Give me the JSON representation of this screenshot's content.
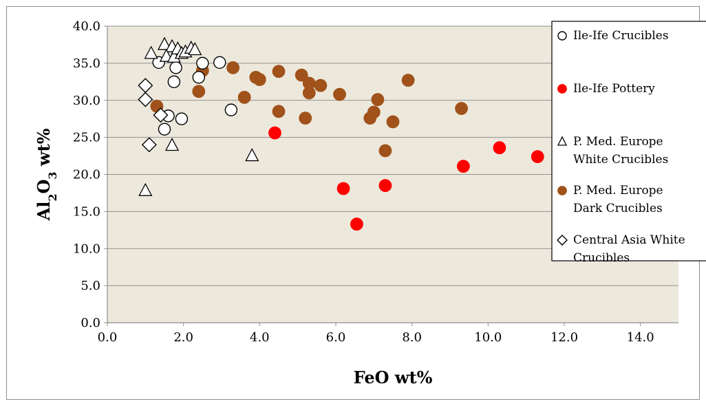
{
  "chart_data": {
    "type": "scatter",
    "title": "",
    "xlabel": "FeO wt%",
    "ylabel_parts": [
      "Al",
      "2",
      "O",
      "3",
      " wt%"
    ],
    "xlim": [
      0,
      15
    ],
    "ylim": [
      0,
      40
    ],
    "x_ticks": [
      "0.0",
      "2.0",
      "4.0",
      "6.0",
      "8.0",
      "10.0",
      "12.0",
      "14.0"
    ],
    "x_tick_values": [
      0,
      2,
      4,
      6,
      8,
      10,
      12,
      14
    ],
    "y_ticks": [
      "0.0",
      "5.0",
      "10.0",
      "15.0",
      "20.0",
      "25.0",
      "30.0",
      "35.0",
      "40.0"
    ],
    "y_tick_values": [
      0,
      5,
      10,
      15,
      20,
      25,
      30,
      35,
      40
    ],
    "grid": "horizontal",
    "legend_position": "right",
    "plot_background": "#ede8dc",
    "series": [
      {
        "name": "Ile-Ife Crucibles",
        "legend_lines": [
          "Ile-Ife Crucibles"
        ],
        "marker": "circle-open",
        "color": "#000000",
        "points": [
          [
            1.35,
            35.1
          ],
          [
            1.8,
            34.4
          ],
          [
            1.75,
            32.5
          ],
          [
            2.4,
            33.1
          ],
          [
            2.5,
            35.0
          ],
          [
            2.95,
            35.1
          ],
          [
            3.25,
            28.7
          ],
          [
            1.6,
            27.9
          ],
          [
            1.95,
            27.5
          ],
          [
            1.5,
            26.1
          ]
        ]
      },
      {
        "name": "Ile-Ife Pottery",
        "legend_lines": [
          "Ile-Ife Pottery"
        ],
        "marker": "circle-filled",
        "color": "#ff0000",
        "points": [
          [
            4.4,
            25.6
          ],
          [
            6.2,
            18.1
          ],
          [
            6.55,
            13.3
          ],
          [
            7.3,
            18.5
          ],
          [
            9.35,
            21.1
          ],
          [
            10.3,
            23.6
          ],
          [
            11.3,
            22.4
          ]
        ]
      },
      {
        "name": "P. Med. Europe White Crucibles",
        "legend_lines": [
          "P. Med. Europe",
          "White Crucibles"
        ],
        "marker": "triangle-open",
        "color": "#000000",
        "points": [
          [
            1.15,
            36.3
          ],
          [
            1.5,
            37.5
          ],
          [
            1.7,
            37.2
          ],
          [
            1.55,
            35.9
          ],
          [
            1.75,
            35.8
          ],
          [
            1.85,
            36.9
          ],
          [
            1.95,
            36.3
          ],
          [
            2.05,
            36.5
          ],
          [
            2.2,
            37.0
          ],
          [
            2.3,
            36.8
          ],
          [
            1.7,
            23.9
          ],
          [
            3.8,
            22.5
          ],
          [
            1.0,
            17.8
          ]
        ]
      },
      {
        "name": "P. Med. Europe Dark Crucibles",
        "legend_lines": [
          "P. Med. Europe",
          "Dark Crucibles"
        ],
        "marker": "circle-filled",
        "color": "#a0521a",
        "points": [
          [
            1.3,
            29.2
          ],
          [
            2.4,
            31.2
          ],
          [
            2.5,
            34.0
          ],
          [
            3.3,
            34.4
          ],
          [
            3.6,
            30.4
          ],
          [
            3.9,
            33.1
          ],
          [
            4.0,
            32.8
          ],
          [
            4.5,
            33.9
          ],
          [
            4.5,
            28.5
          ],
          [
            5.1,
            33.4
          ],
          [
            5.3,
            32.3
          ],
          [
            5.3,
            31.0
          ],
          [
            5.6,
            32.0
          ],
          [
            5.2,
            27.6
          ],
          [
            6.1,
            30.8
          ],
          [
            6.9,
            27.6
          ],
          [
            7.0,
            28.4
          ],
          [
            7.1,
            30.1
          ],
          [
            7.5,
            27.1
          ],
          [
            7.3,
            23.2
          ],
          [
            7.9,
            32.7
          ],
          [
            9.3,
            28.9
          ]
        ]
      },
      {
        "name": "Central Asia White Crucibles",
        "legend_lines": [
          "Central Asia White",
          "Crucibles"
        ],
        "marker": "diamond-open",
        "color": "#000000",
        "points": [
          [
            1.0,
            32.0
          ],
          [
            1.0,
            30.1
          ],
          [
            1.4,
            28.0
          ],
          [
            1.1,
            24.0
          ]
        ]
      }
    ]
  }
}
